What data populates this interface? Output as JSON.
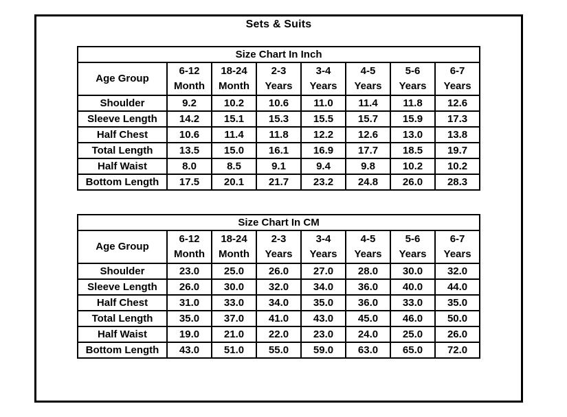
{
  "page": {
    "title": "Sets & Suits"
  },
  "colors": {
    "background": "#ffffff",
    "border": "#000000",
    "text": "#000000"
  },
  "tables": [
    {
      "title": "Size Chart In Inch",
      "row_header_label": "Age Group",
      "columns": [
        [
          "6-12",
          "Month"
        ],
        [
          "18-24",
          "Month"
        ],
        [
          "2-3",
          "Years"
        ],
        [
          "3-4",
          "Years"
        ],
        [
          "4-5",
          "Years"
        ],
        [
          "5-6",
          "Years"
        ],
        [
          "6-7",
          "Years"
        ]
      ],
      "rows": [
        {
          "label": "Shoulder",
          "values": [
            "9.2",
            "10.2",
            "10.6",
            "11.0",
            "11.4",
            "11.8",
            "12.6"
          ]
        },
        {
          "label": "Sleeve Length",
          "values": [
            "14.2",
            "15.1",
            "15.3",
            "15.5",
            "15.7",
            "15.9",
            "17.3"
          ]
        },
        {
          "label": "Half Chest",
          "values": [
            "10.6",
            "11.4",
            "11.8",
            "12.2",
            "12.6",
            "13.0",
            "13.8"
          ]
        },
        {
          "label": "Total Length",
          "values": [
            "13.5",
            "15.0",
            "16.1",
            "16.9",
            "17.7",
            "18.5",
            "19.7"
          ]
        },
        {
          "label": "Half Waist",
          "values": [
            "8.0",
            "8.5",
            "9.1",
            "9.4",
            "9.8",
            "10.2",
            "10.2"
          ]
        },
        {
          "label": "Bottom Length",
          "values": [
            "17.5",
            "20.1",
            "21.7",
            "23.2",
            "24.8",
            "26.0",
            "28.3"
          ]
        }
      ]
    },
    {
      "title": "Size Chart In CM",
      "row_header_label": "Age Group",
      "columns": [
        [
          "6-12",
          "Month"
        ],
        [
          "18-24",
          "Month"
        ],
        [
          "2-3",
          "Years"
        ],
        [
          "3-4",
          "Years"
        ],
        [
          "4-5",
          "Years"
        ],
        [
          "5-6",
          "Years"
        ],
        [
          "6-7",
          "Years"
        ]
      ],
      "rows": [
        {
          "label": "Shoulder",
          "values": [
            "23.0",
            "25.0",
            "26.0",
            "27.0",
            "28.0",
            "30.0",
            "32.0"
          ]
        },
        {
          "label": "Sleeve Length",
          "values": [
            "26.0",
            "30.0",
            "32.0",
            "34.0",
            "36.0",
            "40.0",
            "44.0"
          ]
        },
        {
          "label": "Half Chest",
          "values": [
            "31.0",
            "33.0",
            "34.0",
            "35.0",
            "36.0",
            "33.0",
            "35.0"
          ]
        },
        {
          "label": "Total Length",
          "values": [
            "35.0",
            "37.0",
            "41.0",
            "43.0",
            "45.0",
            "46.0",
            "50.0"
          ]
        },
        {
          "label": "Half Waist",
          "values": [
            "19.0",
            "21.0",
            "22.0",
            "23.0",
            "24.0",
            "25.0",
            "26.0"
          ]
        },
        {
          "label": "Bottom Length",
          "values": [
            "43.0",
            "51.0",
            "55.0",
            "59.0",
            "63.0",
            "65.0",
            "72.0"
          ]
        }
      ]
    }
  ]
}
